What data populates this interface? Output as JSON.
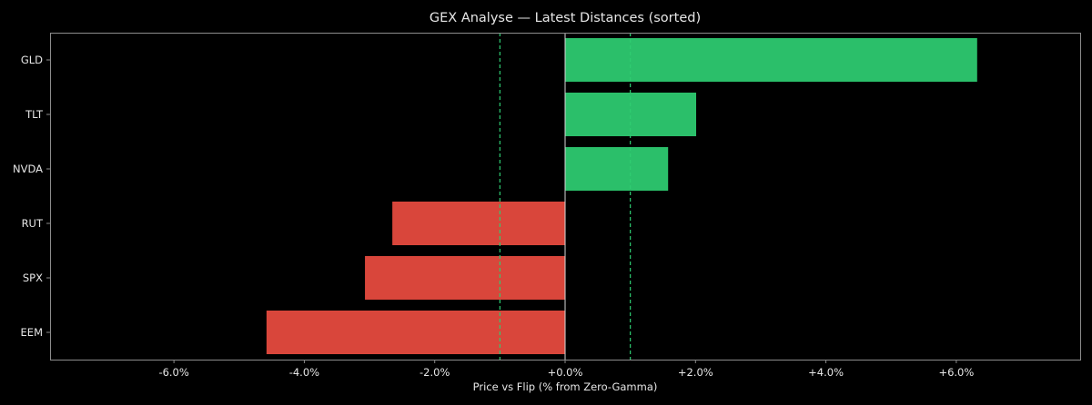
{
  "chart_data": {
    "type": "bar",
    "orientation": "horizontal",
    "title": "GEX Analyse — Latest Distances (sorted)",
    "xlabel": "Price vs Flip (% from Zero-Gamma)",
    "ylabel": "",
    "categories": [
      "GLD",
      "TLT",
      "NVDA",
      "RUT",
      "SPX",
      "EEM"
    ],
    "values": [
      6.32,
      2.01,
      1.58,
      -2.65,
      -3.07,
      -4.58
    ],
    "xlim": [
      -7.9,
      7.9
    ],
    "xticks": [
      -6,
      -4,
      -2,
      0,
      2,
      4,
      6
    ],
    "xtick_labels": [
      "-6.0%",
      "-4.0%",
      "-2.0%",
      "+0.0%",
      "+2.0%",
      "+4.0%",
      "+6.0%"
    ],
    "reference_lines": [
      {
        "x": -1.0,
        "style": "dashed",
        "color": "#2ecc71"
      },
      {
        "x": 1.0,
        "style": "dashed",
        "color": "#2ecc71"
      },
      {
        "x": 0.0,
        "style": "solid",
        "color": "#d9d9d9"
      }
    ],
    "grid": false,
    "legend": "none"
  },
  "colors": {
    "background": "#000000",
    "positive": "#2bbf6a",
    "negative": "#d9463b",
    "text": "#e6e6e6",
    "frame": "#8c8c8c"
  }
}
